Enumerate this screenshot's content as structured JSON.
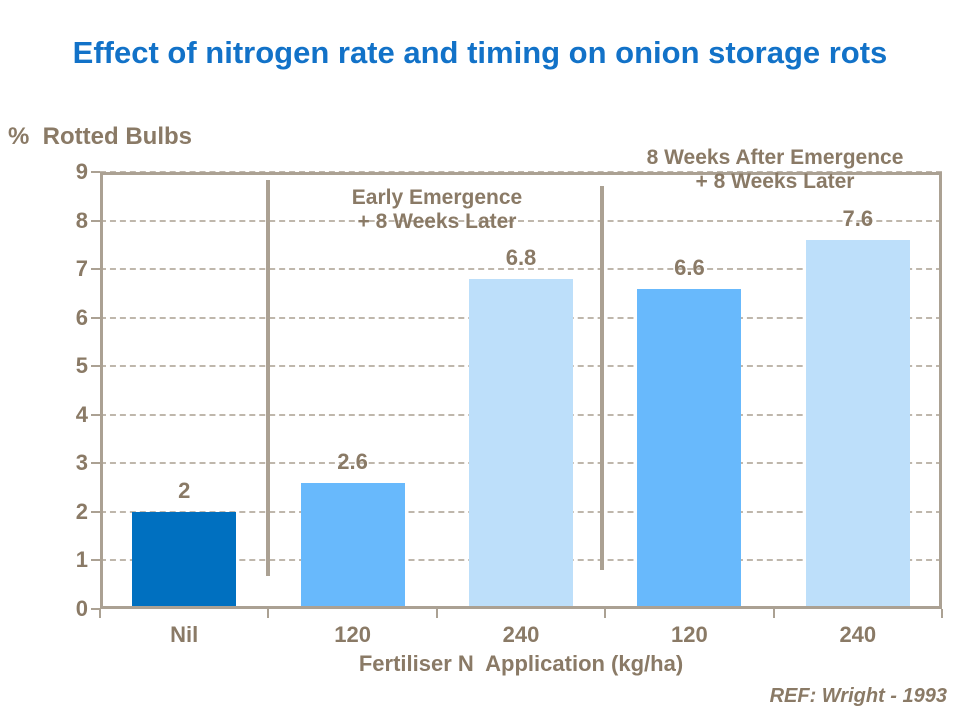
{
  "page": {
    "title": "Effect of nitrogen rate and timing on onion storage rots"
  },
  "chart_data": {
    "type": "bar",
    "title": "Effect of nitrogen rate and timing on onion storage rots",
    "ylabel": "%  Rotted Bulbs",
    "xlabel": "Fertiliser N  Application (kg/ha)",
    "categories": [
      "Nil",
      "120",
      "240",
      "120",
      "240"
    ],
    "values": [
      2,
      2.6,
      6.8,
      6.6,
      7.6
    ],
    "value_labels": [
      "2",
      "2.6",
      "6.8",
      "6.6",
      "7.6"
    ],
    "bar_colors": [
      "#0070C0",
      "#68B9FC",
      "#BDDFFA",
      "#68B9FC",
      "#BDDFFA"
    ],
    "ylim": [
      0,
      9
    ],
    "yticks": [
      0,
      1,
      2,
      3,
      4,
      5,
      6,
      7,
      8,
      9
    ],
    "grid": "horizontal-dashed",
    "legend": "none",
    "group_annotations": [
      {
        "lines": [
          "Early Emergence",
          "+ 8 Weeks Later"
        ],
        "covers_categories": [
          "120",
          "240"
        ]
      },
      {
        "lines": [
          "8 Weeks After Emergence",
          "+ 8 Weeks Later"
        ],
        "covers_categories": [
          "120",
          "240"
        ]
      }
    ],
    "group_divider_boundaries": [
      1,
      3
    ],
    "source": "REF: Wright - 1993"
  },
  "colors": {
    "background": "#FFFFFF",
    "title": "#1272C8",
    "text": "#8A7A66",
    "axis": "#ABA193",
    "grid": "#B5AB9E"
  }
}
